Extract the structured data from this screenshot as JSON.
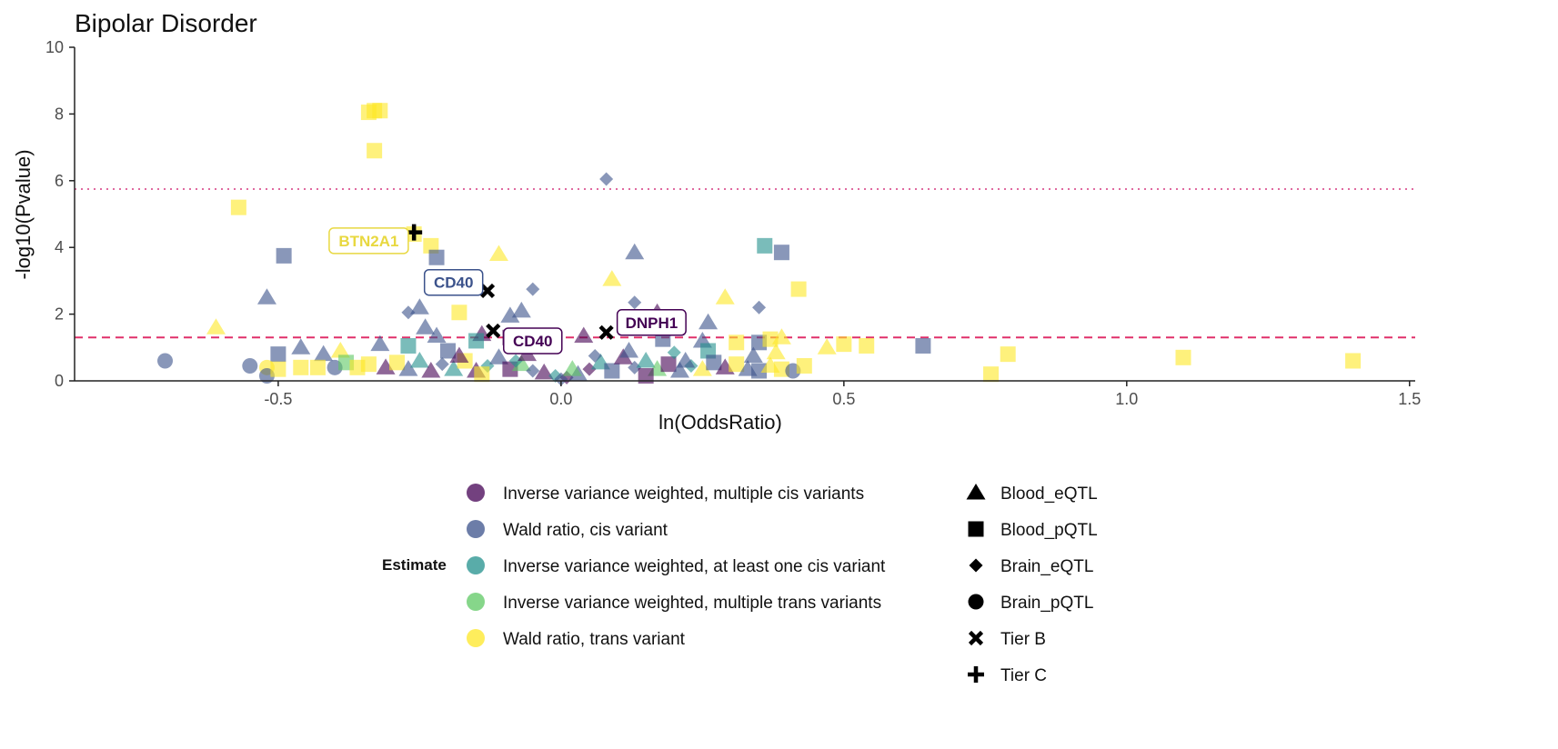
{
  "chart_data": {
    "type": "scatter",
    "title": "Bipolar Disorder",
    "xlabel": "ln(OddsRatio)",
    "ylabel": "-log10(Pvalue)",
    "xlim": [
      -0.86,
      1.51
    ],
    "ylim": [
      0,
      10
    ],
    "x_ticks": [
      -0.5,
      0.0,
      0.5,
      1.0,
      1.5
    ],
    "x_tick_labels": [
      "-0.5",
      "0.0",
      "0.5",
      "1.0",
      "1.5"
    ],
    "y_ticks": [
      0,
      2,
      4,
      6,
      8,
      10
    ],
    "y_tick_labels": [
      "0",
      "2",
      "4",
      "6",
      "8",
      "10"
    ],
    "grid": false,
    "reference_lines": [
      {
        "style": "dotted",
        "y": 5.75,
        "color": "#e06aa0"
      },
      {
        "style": "dashed",
        "y": 1.3,
        "color": "#e0306a"
      }
    ],
    "colors": {
      "ivw_multi_cis": "#440154",
      "wald_cis": "#3b528b",
      "ivw_one_cis": "#21908c",
      "ivw_multi_trans": "#5dc863",
      "wald_trans": "#fde725"
    },
    "legend_position": "bottom",
    "legend": {
      "estimate_title": "Estimate",
      "estimate_entries": [
        {
          "key": "ivw_multi_cis",
          "label": "Inverse variance weighted, multiple cis variants"
        },
        {
          "key": "wald_cis",
          "label": "Wald ratio, cis variant"
        },
        {
          "key": "ivw_one_cis",
          "label": "Inverse variance weighted, at least one cis variant"
        },
        {
          "key": "ivw_multi_trans",
          "label": "Inverse variance weighted, multiple trans variants"
        },
        {
          "key": "wald_trans",
          "label": "Wald ratio, trans variant"
        }
      ],
      "shape_entries": [
        {
          "shape": "triangle",
          "label": "Blood_eQTL"
        },
        {
          "shape": "square",
          "label": "Blood_pQTL"
        },
        {
          "shape": "diamond",
          "label": "Brain_eQTL"
        },
        {
          "shape": "circle",
          "label": "Brain_pQTL"
        },
        {
          "shape": "cross-x",
          "label": "Tier B"
        },
        {
          "shape": "cross-plus",
          "label": "Tier C"
        }
      ]
    },
    "points": [
      {
        "x": -0.34,
        "y": 8.05,
        "shape": "square",
        "est": "wald_trans"
      },
      {
        "x": -0.33,
        "y": 8.1,
        "shape": "square",
        "est": "wald_trans"
      },
      {
        "x": -0.32,
        "y": 8.1,
        "shape": "square",
        "est": "wald_trans"
      },
      {
        "x": -0.33,
        "y": 6.9,
        "shape": "square",
        "est": "wald_trans"
      },
      {
        "x": 0.08,
        "y": 6.05,
        "shape": "diamond",
        "est": "wald_cis"
      },
      {
        "x": -0.57,
        "y": 5.2,
        "shape": "square",
        "est": "wald_trans"
      },
      {
        "x": -0.26,
        "y": 4.4,
        "shape": "square",
        "est": "wald_trans"
      },
      {
        "x": -0.23,
        "y": 4.05,
        "shape": "square",
        "est": "wald_trans"
      },
      {
        "x": -0.22,
        "y": 3.7,
        "shape": "square",
        "est": "wald_cis"
      },
      {
        "x": -0.49,
        "y": 3.75,
        "shape": "square",
        "est": "wald_cis"
      },
      {
        "x": 0.36,
        "y": 4.05,
        "shape": "square",
        "est": "ivw_one_cis"
      },
      {
        "x": 0.39,
        "y": 3.85,
        "shape": "square",
        "est": "wald_cis"
      },
      {
        "x": -0.11,
        "y": 3.8,
        "shape": "triangle",
        "est": "wald_trans"
      },
      {
        "x": 0.13,
        "y": 3.85,
        "shape": "triangle",
        "est": "wald_cis"
      },
      {
        "x": 0.09,
        "y": 3.05,
        "shape": "triangle",
        "est": "wald_trans"
      },
      {
        "x": 0.42,
        "y": 2.75,
        "shape": "square",
        "est": "wald_trans"
      },
      {
        "x": -0.05,
        "y": 2.75,
        "shape": "diamond",
        "est": "wald_cis"
      },
      {
        "x": 0.29,
        "y": 2.5,
        "shape": "triangle",
        "est": "wald_trans"
      },
      {
        "x": -0.52,
        "y": 2.5,
        "shape": "triangle",
        "est": "wald_cis"
      },
      {
        "x": 0.13,
        "y": 2.35,
        "shape": "diamond",
        "est": "wald_cis"
      },
      {
        "x": 0.35,
        "y": 2.2,
        "shape": "diamond",
        "est": "wald_cis"
      },
      {
        "x": -0.25,
        "y": 2.2,
        "shape": "triangle",
        "est": "wald_cis"
      },
      {
        "x": -0.07,
        "y": 2.1,
        "shape": "triangle",
        "est": "wald_cis"
      },
      {
        "x": -0.27,
        "y": 2.05,
        "shape": "diamond",
        "est": "wald_cis"
      },
      {
        "x": -0.18,
        "y": 2.05,
        "shape": "square",
        "est": "wald_trans"
      },
      {
        "x": 0.17,
        "y": 2.05,
        "shape": "triangle",
        "est": "ivw_multi_cis"
      },
      {
        "x": -0.09,
        "y": 1.95,
        "shape": "triangle",
        "est": "wald_cis"
      },
      {
        "x": -0.61,
        "y": 1.6,
        "shape": "triangle",
        "est": "wald_trans"
      },
      {
        "x": -0.24,
        "y": 1.6,
        "shape": "triangle",
        "est": "wald_cis"
      },
      {
        "x": 0.26,
        "y": 1.75,
        "shape": "triangle",
        "est": "wald_cis"
      },
      {
        "x": -0.14,
        "y": 1.4,
        "shape": "triangle",
        "est": "ivw_multi_cis"
      },
      {
        "x": -0.22,
        "y": 1.35,
        "shape": "triangle",
        "est": "wald_cis"
      },
      {
        "x": -0.09,
        "y": 1.3,
        "shape": "square",
        "est": "ivw_multi_cis"
      },
      {
        "x": 0.04,
        "y": 1.35,
        "shape": "triangle",
        "est": "ivw_multi_cis"
      },
      {
        "x": 0.18,
        "y": 1.25,
        "shape": "square",
        "est": "wald_cis"
      },
      {
        "x": 0.25,
        "y": 1.2,
        "shape": "triangle",
        "est": "wald_cis"
      },
      {
        "x": 0.31,
        "y": 1.15,
        "shape": "square",
        "est": "wald_trans"
      },
      {
        "x": 0.35,
        "y": 1.15,
        "shape": "square",
        "est": "wald_cis"
      },
      {
        "x": 0.37,
        "y": 1.25,
        "shape": "square",
        "est": "wald_trans"
      },
      {
        "x": 0.39,
        "y": 1.3,
        "shape": "triangle",
        "est": "wald_trans"
      },
      {
        "x": 0.47,
        "y": 1.0,
        "shape": "triangle",
        "est": "wald_trans"
      },
      {
        "x": 0.5,
        "y": 1.1,
        "shape": "square",
        "est": "wald_trans"
      },
      {
        "x": 0.54,
        "y": 1.05,
        "shape": "square",
        "est": "wald_trans"
      },
      {
        "x": 0.64,
        "y": 1.05,
        "shape": "square",
        "est": "wald_cis"
      },
      {
        "x": -0.32,
        "y": 1.1,
        "shape": "triangle",
        "est": "wald_cis"
      },
      {
        "x": -0.27,
        "y": 1.05,
        "shape": "square",
        "est": "ivw_one_cis"
      },
      {
        "x": -0.46,
        "y": 1.0,
        "shape": "triangle",
        "est": "wald_cis"
      },
      {
        "x": -0.5,
        "y": 0.8,
        "shape": "square",
        "est": "wald_cis"
      },
      {
        "x": -0.42,
        "y": 0.8,
        "shape": "triangle",
        "est": "wald_cis"
      },
      {
        "x": -0.39,
        "y": 0.9,
        "shape": "triangle",
        "est": "wald_trans"
      },
      {
        "x": -0.2,
        "y": 0.9,
        "shape": "square",
        "est": "wald_cis"
      },
      {
        "x": -0.15,
        "y": 1.2,
        "shape": "square",
        "est": "ivw_one_cis"
      },
      {
        "x": 0.26,
        "y": 0.9,
        "shape": "square",
        "est": "ivw_one_cis"
      },
      {
        "x": 0.34,
        "y": 0.75,
        "shape": "triangle",
        "est": "wald_cis"
      },
      {
        "x": 0.38,
        "y": 0.85,
        "shape": "triangle",
        "est": "wald_trans"
      },
      {
        "x": -0.7,
        "y": 0.6,
        "shape": "circle",
        "est": "wald_cis"
      },
      {
        "x": -0.55,
        "y": 0.45,
        "shape": "circle",
        "est": "wald_cis"
      },
      {
        "x": -0.52,
        "y": 0.4,
        "shape": "circle",
        "est": "wald_trans"
      },
      {
        "x": -0.52,
        "y": 0.15,
        "shape": "circle",
        "est": "wald_cis"
      },
      {
        "x": -0.5,
        "y": 0.35,
        "shape": "square",
        "est": "wald_trans"
      },
      {
        "x": -0.46,
        "y": 0.4,
        "shape": "square",
        "est": "wald_trans"
      },
      {
        "x": -0.43,
        "y": 0.4,
        "shape": "square",
        "est": "wald_trans"
      },
      {
        "x": -0.4,
        "y": 0.4,
        "shape": "circle",
        "est": "wald_cis"
      },
      {
        "x": -0.38,
        "y": 0.55,
        "shape": "square",
        "est": "ivw_multi_trans"
      },
      {
        "x": -0.36,
        "y": 0.4,
        "shape": "square",
        "est": "wald_trans"
      },
      {
        "x": -0.34,
        "y": 0.5,
        "shape": "square",
        "est": "wald_trans"
      },
      {
        "x": -0.31,
        "y": 0.4,
        "shape": "triangle",
        "est": "ivw_multi_cis"
      },
      {
        "x": -0.29,
        "y": 0.55,
        "shape": "square",
        "est": "wald_trans"
      },
      {
        "x": -0.27,
        "y": 0.35,
        "shape": "triangle",
        "est": "wald_cis"
      },
      {
        "x": -0.25,
        "y": 0.6,
        "shape": "triangle",
        "est": "ivw_one_cis"
      },
      {
        "x": -0.23,
        "y": 0.3,
        "shape": "triangle",
        "est": "ivw_multi_cis"
      },
      {
        "x": -0.21,
        "y": 0.5,
        "shape": "diamond",
        "est": "wald_cis"
      },
      {
        "x": -0.19,
        "y": 0.35,
        "shape": "triangle",
        "est": "ivw_one_cis"
      },
      {
        "x": -0.17,
        "y": 0.6,
        "shape": "square",
        "est": "wald_trans"
      },
      {
        "x": -0.15,
        "y": 0.3,
        "shape": "triangle",
        "est": "ivw_multi_cis"
      },
      {
        "x": -0.13,
        "y": 0.45,
        "shape": "diamond",
        "est": "ivw_one_cis"
      },
      {
        "x": -0.11,
        "y": 0.7,
        "shape": "triangle",
        "est": "wald_cis"
      },
      {
        "x": -0.09,
        "y": 0.35,
        "shape": "square",
        "est": "ivw_multi_cis"
      },
      {
        "x": -0.07,
        "y": 0.5,
        "shape": "triangle",
        "est": "ivw_multi_trans"
      },
      {
        "x": -0.05,
        "y": 0.3,
        "shape": "diamond",
        "est": "wald_cis"
      },
      {
        "x": -0.03,
        "y": 0.25,
        "shape": "triangle",
        "est": "ivw_multi_cis"
      },
      {
        "x": -0.01,
        "y": 0.15,
        "shape": "diamond",
        "est": "ivw_one_cis"
      },
      {
        "x": 0.01,
        "y": 0.1,
        "shape": "diamond",
        "est": "ivw_multi_cis"
      },
      {
        "x": 0.03,
        "y": 0.2,
        "shape": "triangle",
        "est": "wald_cis"
      },
      {
        "x": 0.05,
        "y": 0.35,
        "shape": "diamond",
        "est": "ivw_multi_cis"
      },
      {
        "x": 0.07,
        "y": 0.55,
        "shape": "triangle",
        "est": "ivw_one_cis"
      },
      {
        "x": 0.09,
        "y": 0.3,
        "shape": "square",
        "est": "wald_cis"
      },
      {
        "x": 0.11,
        "y": 0.7,
        "shape": "triangle",
        "est": "ivw_multi_cis"
      },
      {
        "x": 0.13,
        "y": 0.4,
        "shape": "diamond",
        "est": "wald_cis"
      },
      {
        "x": 0.15,
        "y": 0.6,
        "shape": "triangle",
        "est": "ivw_one_cis"
      },
      {
        "x": 0.17,
        "y": 0.35,
        "shape": "triangle",
        "est": "ivw_multi_trans"
      },
      {
        "x": 0.19,
        "y": 0.5,
        "shape": "square",
        "est": "ivw_multi_cis"
      },
      {
        "x": 0.21,
        "y": 0.3,
        "shape": "triangle",
        "est": "wald_cis"
      },
      {
        "x": 0.23,
        "y": 0.45,
        "shape": "diamond",
        "est": "ivw_one_cis"
      },
      {
        "x": 0.25,
        "y": 0.35,
        "shape": "triangle",
        "est": "wald_trans"
      },
      {
        "x": 0.27,
        "y": 0.55,
        "shape": "square",
        "est": "wald_cis"
      },
      {
        "x": 0.29,
        "y": 0.4,
        "shape": "triangle",
        "est": "ivw_multi_cis"
      },
      {
        "x": 0.31,
        "y": 0.5,
        "shape": "square",
        "est": "wald_trans"
      },
      {
        "x": 0.33,
        "y": 0.35,
        "shape": "triangle",
        "est": "wald_cis"
      },
      {
        "x": 0.35,
        "y": 0.3,
        "shape": "square",
        "est": "wald_cis"
      },
      {
        "x": 0.37,
        "y": 0.45,
        "shape": "triangle",
        "est": "wald_trans"
      },
      {
        "x": 0.39,
        "y": 0.35,
        "shape": "square",
        "est": "wald_trans"
      },
      {
        "x": 0.41,
        "y": 0.3,
        "shape": "circle",
        "est": "wald_cis"
      },
      {
        "x": 0.43,
        "y": 0.45,
        "shape": "square",
        "est": "wald_trans"
      },
      {
        "x": -0.08,
        "y": 0.6,
        "shape": "diamond",
        "est": "ivw_one_cis"
      },
      {
        "x": -0.06,
        "y": 0.8,
        "shape": "triangle",
        "est": "ivw_multi_cis"
      },
      {
        "x": 0.06,
        "y": 0.75,
        "shape": "diamond",
        "est": "wald_cis"
      },
      {
        "x": 0.12,
        "y": 0.9,
        "shape": "triangle",
        "est": "wald_cis"
      },
      {
        "x": 0.2,
        "y": 0.85,
        "shape": "diamond",
        "est": "ivw_one_cis"
      },
      {
        "x": -0.18,
        "y": 0.75,
        "shape": "triangle",
        "est": "ivw_multi_cis"
      },
      {
        "x": -0.14,
        "y": 0.2,
        "shape": "square",
        "est": "wald_trans"
      },
      {
        "x": 0.0,
        "y": 0.05,
        "shape": "diamond",
        "est": "wald_cis"
      },
      {
        "x": 0.02,
        "y": 0.35,
        "shape": "triangle",
        "est": "ivw_multi_trans"
      },
      {
        "x": 0.15,
        "y": 0.15,
        "shape": "square",
        "est": "ivw_multi_cis"
      },
      {
        "x": 0.22,
        "y": 0.6,
        "shape": "triangle",
        "est": "wald_cis"
      },
      {
        "x": 0.76,
        "y": 0.2,
        "shape": "square",
        "est": "wald_trans"
      },
      {
        "x": 0.79,
        "y": 0.8,
        "shape": "square",
        "est": "wald_trans"
      },
      {
        "x": 1.1,
        "y": 0.7,
        "shape": "square",
        "est": "wald_trans"
      },
      {
        "x": 1.4,
        "y": 0.6,
        "shape": "square",
        "est": "wald_trans"
      },
      {
        "x": -0.26,
        "y": 4.45,
        "shape": "cross-plus",
        "est": "tier"
      },
      {
        "x": -0.13,
        "y": 2.7,
        "shape": "cross-x",
        "est": "tier"
      },
      {
        "x": -0.12,
        "y": 1.5,
        "shape": "cross-x",
        "est": "tier"
      },
      {
        "x": 0.08,
        "y": 1.45,
        "shape": "cross-x",
        "est": "tier"
      }
    ],
    "labels": [
      {
        "text": "BTN2A1",
        "x": -0.34,
        "y": 4.2,
        "color": "#e8d840"
      },
      {
        "text": "CD40",
        "x": -0.19,
        "y": 2.95,
        "color": "#3b528b"
      },
      {
        "text": "CD40",
        "x": -0.05,
        "y": 1.2,
        "color": "#440154"
      },
      {
        "text": "DNPH1",
        "x": 0.16,
        "y": 1.75,
        "color": "#440154"
      }
    ]
  }
}
